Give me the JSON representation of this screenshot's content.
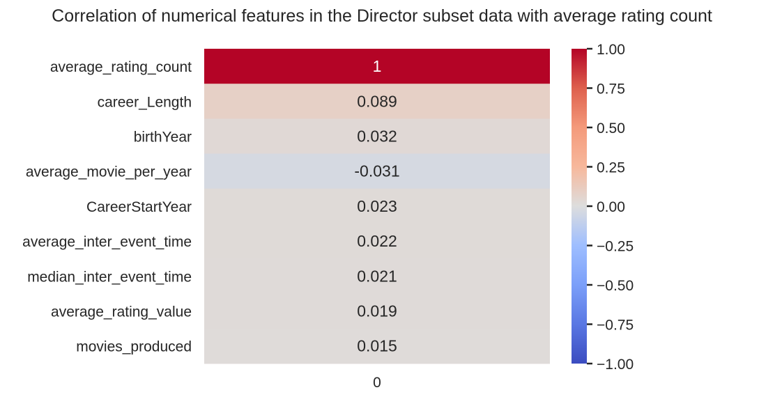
{
  "chart_data": {
    "type": "heatmap",
    "title": "Correlation of numerical features in the Director subset data with average rating count",
    "rows": [
      "average_rating_count",
      "career_Length",
      "birthYear",
      "average_movie_per_year",
      "CareerStartYear",
      "average_inter_event_time",
      "median_inter_event_time",
      "average_rating_value",
      "movies_produced"
    ],
    "columns": [
      "0"
    ],
    "values": [
      1.0,
      0.089,
      0.032,
      -0.031,
      0.023,
      0.022,
      0.021,
      0.019,
      0.015
    ],
    "annotations": [
      "1",
      "0.089",
      "0.032",
      "-0.031",
      "0.023",
      "0.022",
      "0.021",
      "0.019",
      "0.015"
    ],
    "colormap": "coolwarm",
    "vmin": -1.0,
    "vmax": 1.0,
    "colorbar_ticks": [
      1.0,
      0.75,
      0.5,
      0.25,
      0.0,
      -0.25,
      -0.5,
      -0.75,
      -1.0
    ],
    "colorbar_tick_labels": [
      "1.00",
      "0.75",
      "0.50",
      "0.25",
      "0.00",
      "−0.25",
      "−0.50",
      "−0.75",
      "−1.00"
    ],
    "grid": false
  }
}
